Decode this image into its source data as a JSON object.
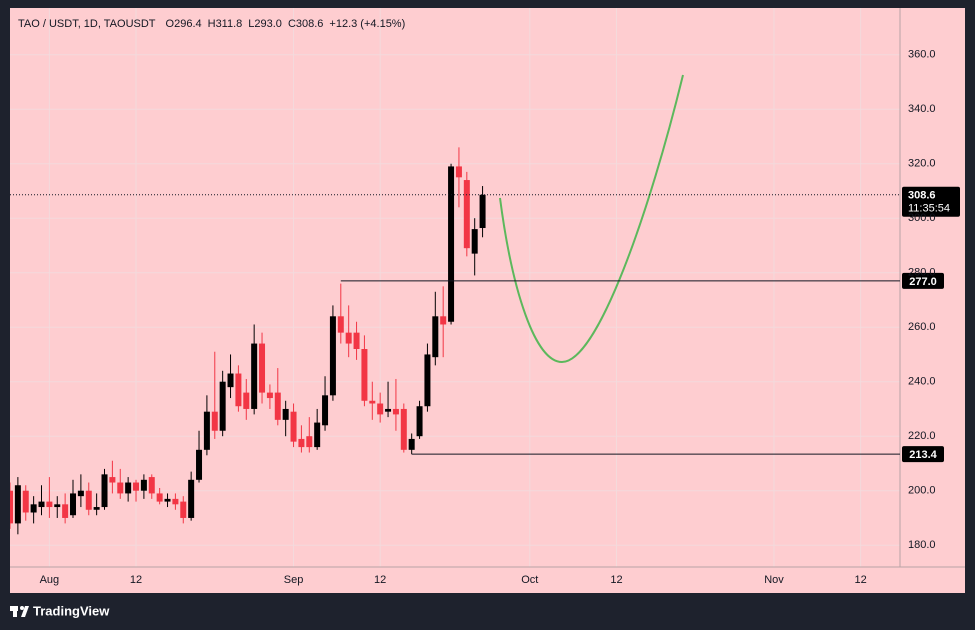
{
  "chart_data": {
    "type": "candlestick",
    "title": "TAO / USDT, 1D, TAOUSDT",
    "header_values": [
      "O296.4",
      "H311.8",
      "L293.0",
      "C308.6",
      "+12.3 (+4.15%)"
    ],
    "brand": "TradingView",
    "x": [
      "Jul 27",
      "Jul 28",
      "Jul 29",
      "Jul 30",
      "Jul 31",
      "Aug 1",
      "Aug 2",
      "Aug 3",
      "Aug 4",
      "Aug 5",
      "Aug 6",
      "Aug 7",
      "Aug 8",
      "Aug 9",
      "Aug 10",
      "Aug 11",
      "Aug 12",
      "Aug 13",
      "Aug 14",
      "Aug 15",
      "Aug 16",
      "Aug 17",
      "Aug 18",
      "Aug 19",
      "Aug 20",
      "Aug 21",
      "Aug 22",
      "Aug 23",
      "Aug 24",
      "Aug 25",
      "Aug 26",
      "Aug 27",
      "Aug 28",
      "Aug 29",
      "Aug 30",
      "Aug 31",
      "Sep 1",
      "Sep 2",
      "Sep 3",
      "Sep 4",
      "Sep 5",
      "Sep 6",
      "Sep 7",
      "Sep 8",
      "Sep 9",
      "Sep 10",
      "Sep 11",
      "Sep 12",
      "Sep 13",
      "Sep 14",
      "Sep 15",
      "Sep 16",
      "Sep 17",
      "Sep 18",
      "Sep 19",
      "Sep 20",
      "Sep 21",
      "Sep 22",
      "Sep 23",
      "Sep 24",
      "Sep 25"
    ],
    "open": [
      200,
      188,
      200,
      192,
      194,
      196,
      194,
      195,
      191,
      198,
      200,
      193,
      194,
      205,
      203,
      199,
      203,
      200,
      205,
      199,
      196,
      197,
      196,
      190,
      204,
      215,
      229,
      222,
      238,
      243,
      236,
      230,
      254,
      236,
      236,
      226,
      229,
      219,
      220,
      216,
      224,
      235,
      264,
      258,
      258,
      252,
      233,
      232,
      229,
      230,
      230,
      215,
      220,
      231,
      249,
      264,
      262,
      319,
      314,
      287,
      296.4
    ],
    "high": [
      203,
      205,
      202,
      198,
      202,
      205,
      198,
      199,
      204,
      206,
      203,
      199,
      208,
      211,
      208,
      205,
      204,
      206,
      206,
      201,
      199,
      199,
      198,
      207,
      222,
      235,
      251,
      244,
      250,
      246,
      241,
      261,
      258,
      239,
      245,
      233,
      232,
      224,
      227,
      230,
      242,
      268,
      276,
      268,
      262,
      257,
      240,
      236,
      240,
      241,
      232,
      221,
      233,
      254,
      273,
      275,
      320,
      326,
      317,
      300,
      311.8
    ],
    "low": [
      186,
      184,
      189,
      188,
      191,
      190,
      190,
      188,
      190,
      194,
      191,
      191,
      193,
      199,
      197,
      196,
      196,
      197,
      197,
      195,
      194,
      193,
      188,
      189,
      203,
      213,
      219,
      220,
      234,
      229,
      226,
      228,
      232,
      230,
      224,
      220,
      216,
      214,
      214,
      215,
      222,
      233,
      254,
      249,
      248,
      231,
      226,
      225,
      227,
      222,
      214,
      213.4,
      219,
      229,
      246,
      249,
      261,
      304,
      286,
      279,
      293.0
    ],
    "close": [
      188,
      202,
      192,
      195,
      196,
      194,
      195,
      190,
      199,
      200,
      193,
      194,
      206,
      203,
      199,
      203,
      200,
      204,
      199,
      196,
      197,
      195,
      190,
      204,
      215,
      229,
      222,
      240,
      243,
      231,
      230,
      254,
      236,
      234,
      226,
      230,
      218,
      216,
      216,
      225,
      235,
      264,
      258,
      254,
      252,
      233,
      232,
      228,
      230,
      228,
      215,
      219,
      231,
      250,
      264,
      261,
      319,
      315,
      289,
      296,
      308.6
    ],
    "up_color": "#000000",
    "down_color": "#f23645",
    "xlim": [
      "Jul 27",
      "Nov 17"
    ],
    "xticks": [
      {
        "value": "Aug 1",
        "label": "Aug"
      },
      {
        "value": "Aug 12",
        "label": "12"
      },
      {
        "value": "Sep 1",
        "label": "Sep"
      },
      {
        "value": "Sep 12",
        "label": "12"
      },
      {
        "value": "Oct 1",
        "label": "Oct"
      },
      {
        "value": "Oct 12",
        "label": "12"
      },
      {
        "value": "Nov 1",
        "label": "Nov"
      },
      {
        "value": "Nov 12",
        "label": "12"
      }
    ],
    "ylim": [
      172,
      372
    ],
    "yticks": [
      {
        "value": 180,
        "label": "180.0"
      },
      {
        "value": 200,
        "label": "200.0"
      },
      {
        "value": 220,
        "label": "220.0"
      },
      {
        "value": 240,
        "label": "240.0"
      },
      {
        "value": 260,
        "label": "260.0"
      },
      {
        "value": 280,
        "label": "280.0"
      },
      {
        "value": 300,
        "label": "300.0"
      },
      {
        "value": 320,
        "label": "320.0"
      },
      {
        "value": 340,
        "label": "340.0"
      },
      {
        "value": 360,
        "label": "360.0"
      }
    ],
    "grid": true,
    "last_price": {
      "value": 308.6,
      "label": "308.6",
      "countdown": "11:35:54"
    },
    "price_lines": [
      {
        "value": 277.0,
        "label": "277.0",
        "start": "Sep 7"
      },
      {
        "value": 213.4,
        "label": "213.4",
        "start": "Sep 16"
      }
    ]
  }
}
